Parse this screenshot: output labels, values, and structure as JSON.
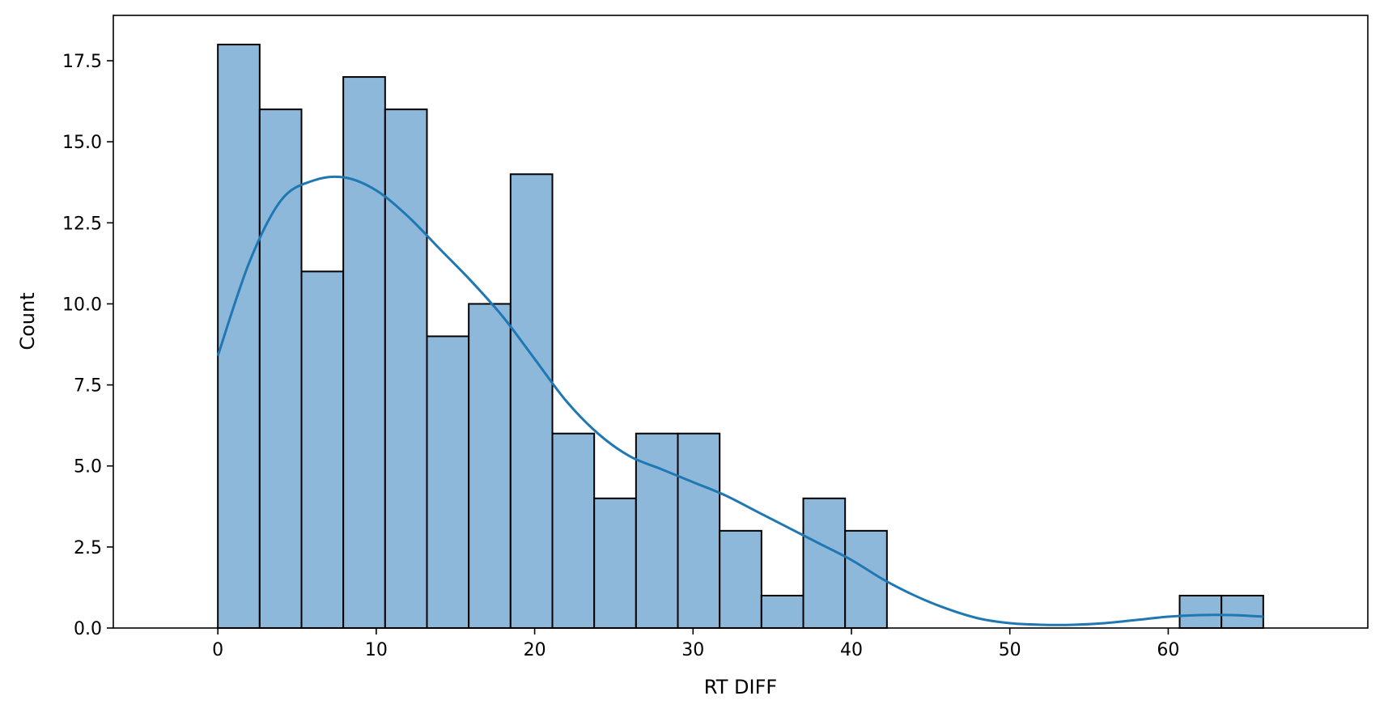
{
  "chart_data": {
    "type": "bar",
    "subtype": "histogram",
    "title": "",
    "xlabel": "RT DIFF",
    "ylabel": "Count",
    "xlim": [
      -6.6,
      72.6
    ],
    "ylim": [
      0,
      18.9
    ],
    "xticks": [
      0,
      10,
      20,
      30,
      40,
      50,
      60
    ],
    "yticks": [
      0.0,
      2.5,
      5.0,
      7.5,
      10.0,
      12.5,
      15.0,
      17.5
    ],
    "ytick_labels": [
      "0.0",
      "2.5",
      "5.0",
      "7.5",
      "10.0",
      "12.5",
      "15.0",
      "17.5"
    ],
    "grid": false,
    "legend": false,
    "bin_edges": [
      0.0,
      2.64,
      5.28,
      7.92,
      10.56,
      13.2,
      15.84,
      18.48,
      21.12,
      23.76,
      26.4,
      29.04,
      31.68,
      34.32,
      36.96,
      39.6,
      42.24,
      44.88,
      47.52,
      50.16,
      52.8,
      55.44,
      58.08,
      60.72,
      63.36,
      66.0
    ],
    "values": [
      18,
      16,
      11,
      17,
      16,
      9,
      10,
      14,
      6,
      4,
      6,
      6,
      3,
      1,
      4,
      3,
      0,
      0,
      0,
      0,
      0,
      0,
      0,
      1,
      1
    ],
    "kde": {
      "x": [
        0,
        2,
        4,
        6,
        8,
        10,
        12,
        14,
        16,
        18,
        20,
        22,
        24,
        26,
        28,
        30,
        32,
        34,
        36,
        38,
        40,
        42,
        44,
        46,
        48,
        50,
        52,
        54,
        56,
        58,
        60,
        62,
        64,
        66
      ],
      "y": [
        8.4,
        11.3,
        13.2,
        13.8,
        13.9,
        13.5,
        12.7,
        11.7,
        10.7,
        9.6,
        8.3,
        7.0,
        6.0,
        5.3,
        4.9,
        4.5,
        4.1,
        3.6,
        3.1,
        2.6,
        2.1,
        1.5,
        1.0,
        0.6,
        0.3,
        0.15,
        0.1,
        0.1,
        0.15,
        0.25,
        0.35,
        0.4,
        0.4,
        0.35
      ]
    },
    "colors": {
      "bar_fill": "#8db8d9",
      "bar_edge": "#000000",
      "kde_line": "#1f77b4"
    }
  }
}
